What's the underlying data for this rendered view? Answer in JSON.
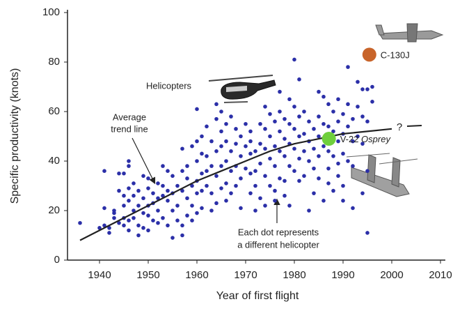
{
  "chart_data": {
    "type": "scatter",
    "x_label": "Year of first flight",
    "y_label": "Specific productivity (knots)",
    "xlim": [
      1934,
      2010
    ],
    "xticks": [
      1940,
      1950,
      1960,
      1970,
      1980,
      1990,
      2000,
      2010
    ],
    "ylim": [
      0,
      100
    ],
    "yticks": [
      0,
      20,
      40,
      60,
      80,
      100
    ],
    "points": {
      "color": "#2b2fa8",
      "x": [
        1936,
        1940,
        1941,
        1941,
        1941,
        1942,
        1942,
        1943,
        1943,
        1943,
        1944,
        1944,
        1944,
        1945,
        1945,
        1945,
        1945,
        1945,
        1946,
        1946,
        1946,
        1946,
        1946,
        1946,
        1947,
        1947,
        1947,
        1947,
        1948,
        1948,
        1948,
        1948,
        1949,
        1949,
        1949,
        1949,
        1950,
        1950,
        1950,
        1950,
        1950,
        1951,
        1951,
        1951,
        1952,
        1952,
        1952,
        1952,
        1953,
        1953,
        1953,
        1953,
        1954,
        1954,
        1954,
        1954,
        1955,
        1955,
        1955,
        1955,
        1956,
        1956,
        1956,
        1957,
        1957,
        1957,
        1957,
        1957,
        1958,
        1958,
        1958,
        1958,
        1959,
        1959,
        1959,
        1959,
        1960,
        1960,
        1960,
        1960,
        1960,
        1960,
        1961,
        1961,
        1961,
        1961,
        1961,
        1962,
        1962,
        1962,
        1962,
        1963,
        1963,
        1963,
        1963,
        1964,
        1964,
        1964,
        1964,
        1964,
        1965,
        1965,
        1965,
        1965,
        1965,
        1966,
        1966,
        1966,
        1966,
        1966,
        1967,
        1967,
        1967,
        1967,
        1968,
        1968,
        1968,
        1968,
        1969,
        1969,
        1969,
        1969,
        1970,
        1970,
        1970,
        1971,
        1971,
        1971,
        1971,
        1971,
        1972,
        1972,
        1972,
        1972,
        1973,
        1973,
        1973,
        1973,
        1974,
        1974,
        1974,
        1974,
        1974,
        1975,
        1975,
        1975,
        1975,
        1976,
        1976,
        1976,
        1976,
        1976,
        1977,
        1977,
        1977,
        1977,
        1977,
        1978,
        1978,
        1978,
        1978,
        1978,
        1979,
        1979,
        1979,
        1979,
        1979,
        1980,
        1980,
        1980,
        1980,
        1980,
        1981,
        1981,
        1981,
        1981,
        1981,
        1982,
        1982,
        1982,
        1982,
        1983,
        1983,
        1983,
        1983,
        1984,
        1984,
        1984,
        1984,
        1985,
        1985,
        1985,
        1985,
        1985,
        1986,
        1986,
        1986,
        1986,
        1987,
        1987,
        1987,
        1987,
        1987,
        1988,
        1988,
        1988,
        1988,
        1989,
        1989,
        1989,
        1989,
        1989,
        1990,
        1990,
        1990,
        1990,
        1990,
        1991,
        1991,
        1991,
        1991,
        1992,
        1992,
        1992,
        1992,
        1993,
        1993,
        1993,
        1994,
        1994,
        1994,
        1994,
        1995,
        1995,
        1995,
        1995,
        1996,
        1996
      ],
      "y": [
        15,
        13,
        36,
        21,
        14,
        13,
        11,
        19,
        17,
        20,
        35,
        28,
        15,
        35,
        26,
        22,
        17,
        14,
        40,
        38,
        29,
        24,
        16,
        12,
        31,
        26,
        20,
        17,
        28,
        22,
        14,
        10,
        34,
        25,
        19,
        13,
        33,
        29,
        22,
        18,
        12,
        27,
        23,
        16,
        31,
        25,
        20,
        15,
        38,
        30,
        26,
        17,
        36,
        28,
        24,
        14,
        34,
        27,
        20,
        9,
        30,
        22,
        16,
        45,
        36,
        28,
        14,
        10,
        38,
        33,
        25,
        18,
        46,
        30,
        22,
        16,
        61,
        48,
        40,
        32,
        27,
        19,
        50,
        43,
        35,
        28,
        21,
        54,
        42,
        36,
        30,
        48,
        38,
        27,
        20,
        63,
        57,
        44,
        34,
        23,
        60,
        52,
        46,
        38,
        29,
        55,
        48,
        40,
        31,
        24,
        58,
        44,
        36,
        27,
        53,
        47,
        38,
        30,
        50,
        42,
        33,
        21,
        55,
        46,
        37,
        52,
        48,
        43,
        35,
        27,
        44,
        36,
        30,
        20,
        55,
        47,
        39,
        25,
        62,
        53,
        45,
        34,
        22,
        59,
        50,
        41,
        30,
        56,
        46,
        38,
        28,
        24,
        68,
        60,
        52,
        44,
        33,
        57,
        49,
        42,
        32,
        26,
        65,
        55,
        47,
        38,
        22,
        81,
        62,
        53,
        45,
        36,
        73,
        58,
        50,
        41,
        32,
        60,
        51,
        44,
        34,
        56,
        48,
        40,
        20,
        53,
        45,
        37,
        27,
        68,
        58,
        50,
        42,
        33,
        66,
        55,
        46,
        24,
        63,
        54,
        44,
        37,
        31,
        60,
        52,
        42,
        28,
        65,
        56,
        48,
        39,
        34,
        59,
        51,
        43,
        30,
        24,
        78,
        63,
        54,
        40,
        57,
        48,
        38,
        21,
        72,
        62,
        50,
        69,
        58,
        47,
        27,
        69,
        56,
        36,
        11,
        70,
        64
      ]
    },
    "trend": {
      "color": "#222222",
      "x": [
        1936,
        1940,
        1945,
        1950,
        1955,
        1960,
        1965,
        1970,
        1975,
        1980,
        1985,
        1990,
        1995,
        2000
      ],
      "y": [
        8,
        12,
        17,
        22,
        27,
        32,
        36,
        40,
        44,
        47,
        49,
        51,
        52,
        53
      ]
    },
    "highlights": [
      {
        "label": "C-130J",
        "x": 1995.4,
        "y": 83,
        "color": "#c8642a"
      },
      {
        "label": "V-22",
        "label_italic": "Osprey",
        "x": 1987.1,
        "y": 49,
        "color": "#6fcf3c"
      }
    ],
    "annotations": {
      "helicopters": "Helicopters",
      "trend_line": [
        "Average",
        "trend line"
      ],
      "dots": [
        "Each dot represents",
        "a different helicopter"
      ],
      "question": "?"
    }
  }
}
